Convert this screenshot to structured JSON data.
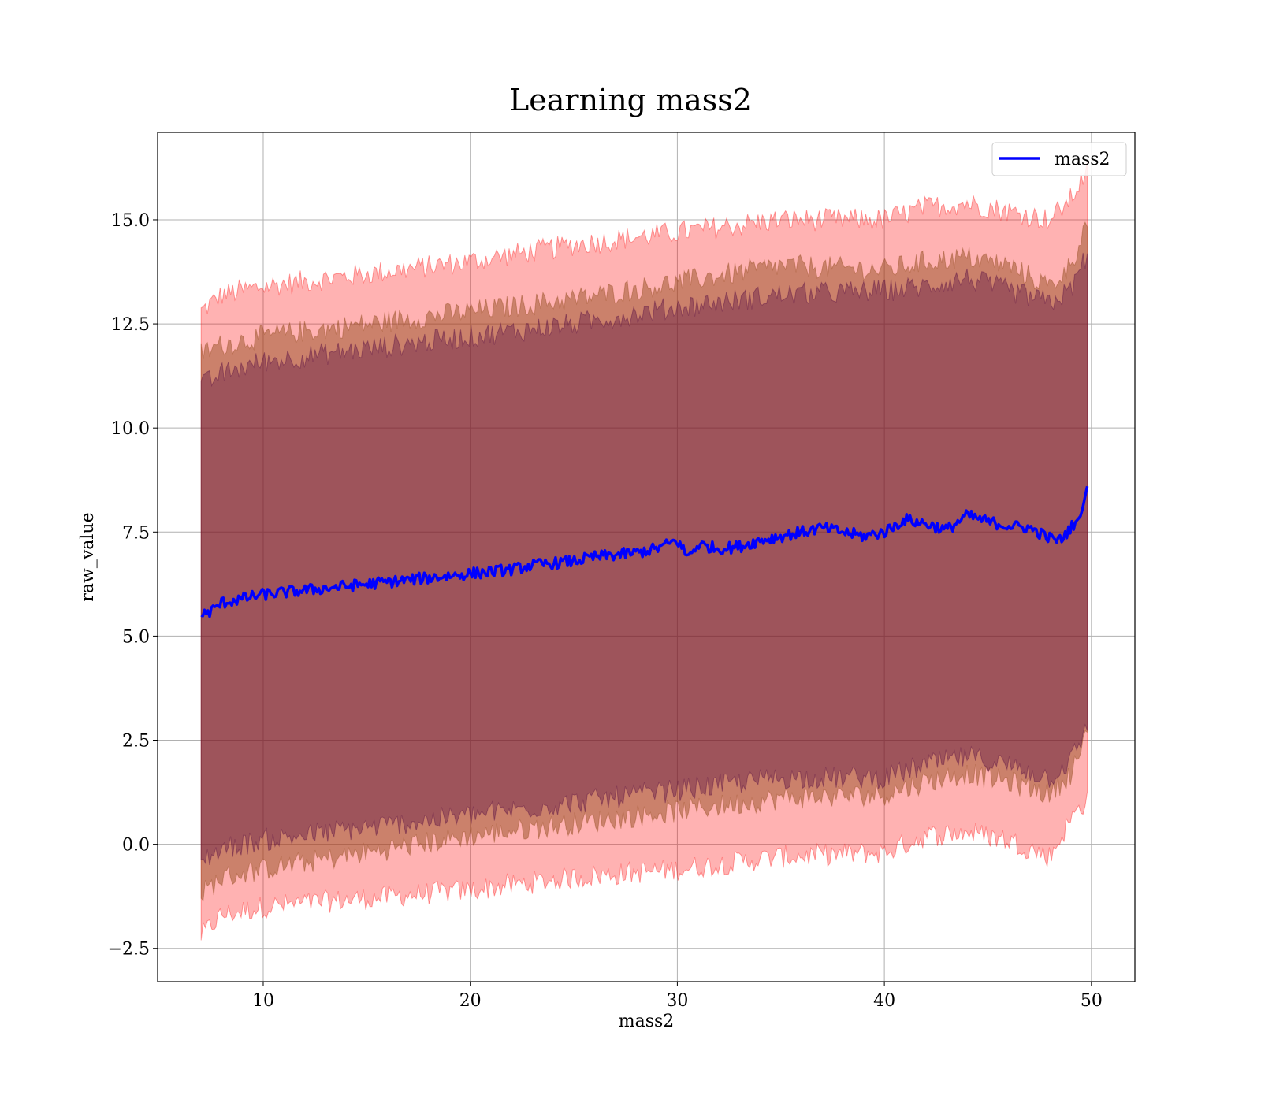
{
  "chart_data": {
    "type": "line",
    "title": "Learning mass2",
    "xlabel": "mass2",
    "ylabel": "raw_value",
    "xlim": [
      4.9,
      52.1
    ],
    "ylim": [
      -3.3,
      17.1
    ],
    "grid": true,
    "legend_position": "top-right",
    "x_ticks": [
      {
        "value": 10,
        "label": "10"
      },
      {
        "value": 20,
        "label": "20"
      },
      {
        "value": 30,
        "label": "30"
      },
      {
        "value": 40,
        "label": "40"
      },
      {
        "value": 50,
        "label": "50"
      }
    ],
    "y_ticks": [
      {
        "value": -2.5,
        "label": "−2.5"
      },
      {
        "value": 0.0,
        "label": "0.0"
      },
      {
        "value": 2.5,
        "label": "2.5"
      },
      {
        "value": 5.0,
        "label": "5.0"
      },
      {
        "value": 7.5,
        "label": "7.5"
      },
      {
        "value": 10.0,
        "label": "10.0"
      },
      {
        "value": 12.5,
        "label": "12.5"
      },
      {
        "value": 15.0,
        "label": "15.0"
      }
    ],
    "series": [
      {
        "name": "mass2",
        "color": "#0000ff",
        "x": [
          7.0,
          7.5,
          8.0,
          9.0,
          10.0,
          11.0,
          12.0,
          13.0,
          14.0,
          15.0,
          16.0,
          17.0,
          18.0,
          19.0,
          20.0,
          21.0,
          22.0,
          23.0,
          24.0,
          25.0,
          26.0,
          27.0,
          28.0,
          29.0,
          30.0,
          30.5,
          31.0,
          32.0,
          33.0,
          34.0,
          35.0,
          36.0,
          37.0,
          38.0,
          39.0,
          40.0,
          41.0,
          42.0,
          43.0,
          44.0,
          45.0,
          46.0,
          47.0,
          48.0,
          48.5,
          49.0,
          49.5,
          49.8
        ],
        "values": [
          5.5,
          5.6,
          5.8,
          5.9,
          6.0,
          6.05,
          6.1,
          6.15,
          6.2,
          6.25,
          6.3,
          6.35,
          6.4,
          6.45,
          6.5,
          6.55,
          6.6,
          6.7,
          6.75,
          6.8,
          6.9,
          6.95,
          7.0,
          7.1,
          7.3,
          6.9,
          7.2,
          7.1,
          7.15,
          7.3,
          7.4,
          7.5,
          7.6,
          7.5,
          7.4,
          7.5,
          7.8,
          7.7,
          7.55,
          7.9,
          7.75,
          7.65,
          7.6,
          7.35,
          7.3,
          7.6,
          7.9,
          8.6
        ]
      }
    ],
    "bands": [
      {
        "color": "#ff0000",
        "opacity": 0.3,
        "x": [
          7.0,
          8.0,
          10.0,
          15.0,
          20.0,
          25.0,
          30.0,
          35.0,
          40.0,
          42.0,
          44.0,
          46.0,
          48.0,
          49.0,
          49.8
        ],
        "upper": [
          12.8,
          13.2,
          13.4,
          13.7,
          14.0,
          14.4,
          14.7,
          15.0,
          15.0,
          15.3,
          15.4,
          15.2,
          15.0,
          15.5,
          16.2
        ],
        "lower": [
          -2.2,
          -1.7,
          -1.5,
          -1.3,
          -1.1,
          -0.8,
          -0.6,
          -0.3,
          -0.2,
          0.2,
          0.3,
          0.1,
          -0.3,
          0.6,
          1.1
        ]
      },
      {
        "color": "#8b4513",
        "opacity": 0.45,
        "x": [
          7.0,
          8.0,
          10.0,
          15.0,
          20.0,
          25.0,
          30.0,
          35.0,
          40.0,
          42.0,
          44.0,
          46.0,
          48.0,
          49.0,
          49.8
        ],
        "upper": [
          11.8,
          12.0,
          12.2,
          12.5,
          12.8,
          13.1,
          13.5,
          13.9,
          13.8,
          14.0,
          14.1,
          13.9,
          13.4,
          13.9,
          15.0
        ],
        "lower": [
          -1.2,
          -0.8,
          -0.6,
          -0.2,
          0.2,
          0.5,
          0.8,
          1.1,
          1.2,
          1.5,
          1.7,
          1.5,
          1.2,
          1.7,
          2.6
        ]
      },
      {
        "color": "#4b0040",
        "opacity": 0.35,
        "x": [
          7.0,
          8.0,
          10.0,
          15.0,
          20.0,
          25.0,
          30.0,
          35.0,
          40.0,
          42.0,
          44.0,
          46.0,
          48.0,
          49.0,
          49.8
        ],
        "upper": [
          11.0,
          11.3,
          11.6,
          11.9,
          12.2,
          12.5,
          12.9,
          13.2,
          13.3,
          13.4,
          13.6,
          13.3,
          13.0,
          13.3,
          14.2
        ],
        "lower": [
          -0.4,
          -0.1,
          0.1,
          0.4,
          0.7,
          1.0,
          1.3,
          1.6,
          1.6,
          1.9,
          2.1,
          1.9,
          1.6,
          2.0,
          2.8
        ]
      }
    ]
  }
}
